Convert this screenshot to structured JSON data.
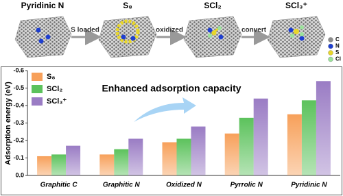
{
  "scheme": {
    "stages": [
      "Pyridinic N",
      "S₈",
      "SCl₂",
      "SCl₃⁺"
    ],
    "steps": [
      "S loaded",
      "oxidized",
      "convert"
    ],
    "atoms": [
      {
        "label": "C",
        "color": "#8c8c8c"
      },
      {
        "label": "N",
        "color": "#1f3fd0"
      },
      {
        "label": "S",
        "color": "#e8d62a"
      },
      {
        "label": "Cl",
        "color": "#9be39b"
      }
    ]
  },
  "chart_data": {
    "type": "bar",
    "annotation": "Enhanced adsorption capacity",
    "y_label": "Adsorption energy (eV)",
    "categories": [
      "Graphitic C",
      "Graphitic N",
      "Oxidized N",
      "Pyrrolic N",
      "Pyridinic N"
    ],
    "series": [
      {
        "name": "S₈",
        "color": "#f7a05a",
        "values": [
          -0.11,
          -0.12,
          -0.19,
          -0.24,
          -0.35
        ]
      },
      {
        "name": "SCl₂",
        "color": "#5cc25c",
        "values": [
          -0.12,
          -0.15,
          -0.21,
          -0.33,
          -0.43
        ]
      },
      {
        "name": "SCl₃⁺",
        "color": "#9a7cc4",
        "values": [
          -0.17,
          -0.21,
          -0.28,
          -0.44,
          -0.54
        ]
      }
    ],
    "ylim": [
      0,
      -0.6
    ],
    "yticks": [
      -0.6,
      -0.5,
      -0.4,
      -0.3,
      -0.2,
      -0.1,
      {
        "value": 0,
        "label": "0.0"
      }
    ],
    "legend": "upper-left"
  }
}
